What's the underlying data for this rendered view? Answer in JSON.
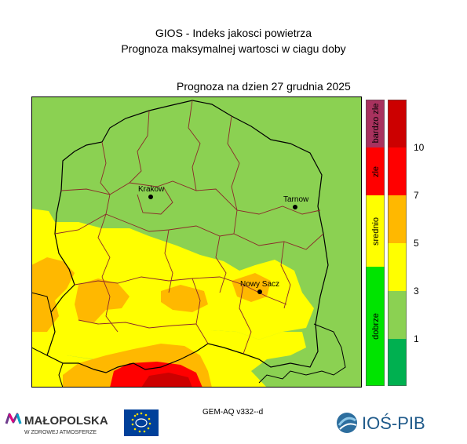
{
  "header": {
    "title": "GIOS - Indeks jakosci powietrza",
    "subtitle": "Prognoza maksymalnej wartosci w ciagu doby",
    "forecast_date": "Prognoza na dzien  27 grudnia 2025"
  },
  "map": {
    "cities": [
      {
        "name": "Krakow"
      },
      {
        "name": "Tarnow"
      },
      {
        "name": "Nowy Sacz"
      }
    ]
  },
  "legend": {
    "categories": [
      {
        "label": "bardzo zle",
        "color": "#a8325e"
      },
      {
        "label": "zle",
        "color": "#ff0000"
      },
      {
        "label": "srednio",
        "color": "#ffff00"
      },
      {
        "label": "dobrze",
        "color": "#00e400"
      }
    ],
    "scale_colors": [
      "#cc0000",
      "#ff0000",
      "#ffb800",
      "#ffff00",
      "#8bd152",
      "#00b050"
    ],
    "ticks": [
      "10",
      "7",
      "5",
      "3",
      "1"
    ]
  },
  "footer": {
    "model": "GEM-AQ v332--d",
    "logo_malopolska": "MAŁOPOLSKA",
    "logo_malopolska_sub": "W ZDROWEJ ATMOSFERZE",
    "logo_ios": "IOŚ-PIB"
  },
  "colors": {
    "good": "#8bd152",
    "moderate": "#ffff00",
    "orange": "#ffb800",
    "red": "#ff0000",
    "darkred": "#cc0000",
    "border_region": "#000000",
    "border_county": "#8b2a2a"
  }
}
